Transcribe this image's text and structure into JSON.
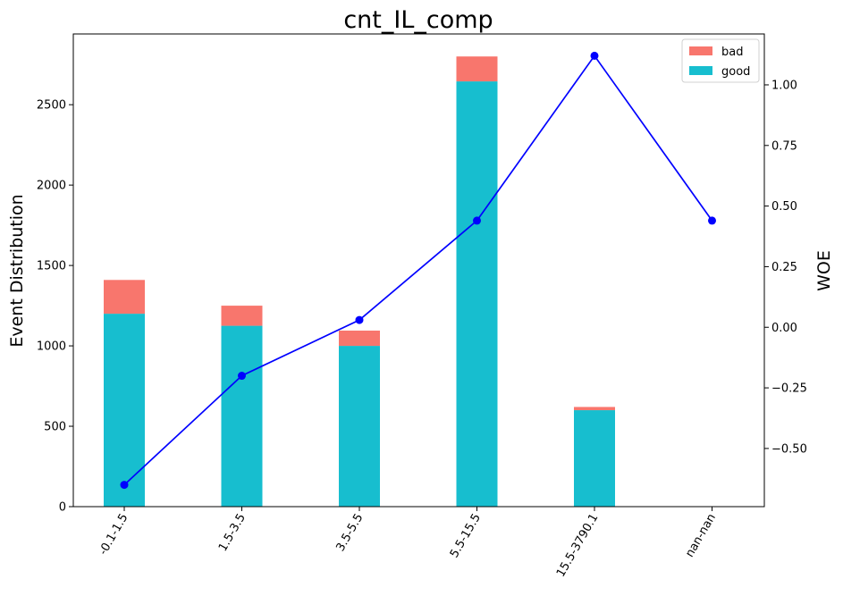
{
  "chart_data": {
    "type": "bar",
    "title": "cnt_IL_comp",
    "ylabel": "Event Distribution",
    "y2label": "WOE",
    "categories": [
      "-0.1-1.5",
      "1.5-3.5",
      "3.5-5.5",
      "5.5-15.5",
      "15.5-3790.1",
      "nan-nan"
    ],
    "stacked": true,
    "series": [
      {
        "name": "good",
        "color": "#17becf",
        "values": [
          1200,
          1125,
          1000,
          2645,
          600,
          0
        ]
      },
      {
        "name": "bad",
        "color": "#f8766d",
        "values": [
          210,
          125,
          95,
          155,
          20,
          0
        ]
      }
    ],
    "line_series": {
      "axis": "right",
      "color": "#0000ff",
      "values": [
        -0.65,
        -0.2,
        0.03,
        0.44,
        1.12,
        0.44
      ]
    },
    "ylim": [
      0,
      2940
    ],
    "y2lim": [
      -0.74,
      1.21
    ],
    "yticks": [
      0,
      500,
      1000,
      1500,
      2000,
      2500
    ],
    "y2ticks": [
      -0.5,
      -0.25,
      0.0,
      0.25,
      0.5,
      0.75,
      1.0
    ],
    "y2tick_labels": [
      "−0.50",
      "−0.25",
      "0.00",
      "0.25",
      "0.50",
      "0.75",
      "1.00"
    ],
    "legend": {
      "position": "top-right",
      "entries": [
        "bad",
        "good"
      ]
    },
    "grid": false
  }
}
